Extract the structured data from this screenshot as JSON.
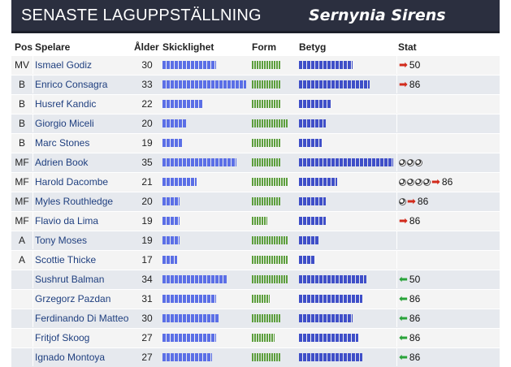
{
  "header": {
    "title": "SENASTE LAGUPPSTÄLLNING",
    "team": "Sernynia Sirens"
  },
  "columns": {
    "pos": "Pos",
    "player": "Spelare",
    "age": "Ålder",
    "skill": "Skicklighet",
    "form": "Form",
    "rating": "Betyg",
    "stat": "Stat"
  },
  "colors": {
    "header_bg": "#2b2f3f",
    "skill_bar": "#5b6fe6",
    "rating_bar": "#3f4fc8",
    "form_bar": "#5c9e3c",
    "arrow_up": "#d22b1c",
    "arrow_down": "#29a33a"
  },
  "players": [
    {
      "pos": "MV",
      "name": "Ismael Godiz",
      "age": "30",
      "skill": 0.62,
      "form": 0.78,
      "rating": 0.56,
      "balls": 0,
      "arrow": "up-arrow-icon",
      "stat": "50"
    },
    {
      "pos": "B",
      "name": "Enrico Consagra",
      "age": "33",
      "skill": 0.97,
      "form": 0.78,
      "rating": 0.74,
      "balls": 0,
      "arrow": "up-arrow-icon",
      "stat": "86"
    },
    {
      "pos": "B",
      "name": "Husref Kandic",
      "age": "22",
      "skill": 0.47,
      "form": 0.78,
      "rating": 0.34,
      "balls": 0,
      "arrow": "",
      "stat": ""
    },
    {
      "pos": "B",
      "name": "Giorgio Miceli",
      "age": "20",
      "skill": 0.28,
      "form": 0.95,
      "rating": 0.28,
      "balls": 0,
      "arrow": "",
      "stat": ""
    },
    {
      "pos": "B",
      "name": "Marc Stones",
      "age": "19",
      "skill": 0.24,
      "form": 0.78,
      "rating": 0.24,
      "balls": 0,
      "arrow": "",
      "stat": ""
    },
    {
      "pos": "MF",
      "name": "Adrien Book",
      "age": "35",
      "skill": 0.86,
      "form": 0.78,
      "rating": 0.98,
      "balls": 3,
      "arrow": "",
      "stat": ""
    },
    {
      "pos": "MF",
      "name": "Harold Dacombe",
      "age": "21",
      "skill": 0.4,
      "form": 0.95,
      "rating": 0.4,
      "balls": 4,
      "arrow": "up-arrow-icon",
      "stat": "86"
    },
    {
      "pos": "MF",
      "name": "Myles Routhledge",
      "age": "20",
      "skill": 0.2,
      "form": 0.78,
      "rating": 0.28,
      "balls": 1,
      "arrow": "up-arrow-icon",
      "stat": "86"
    },
    {
      "pos": "MF",
      "name": "Flavio da Lima",
      "age": "19",
      "skill": 0.2,
      "form": 0.42,
      "rating": 0.28,
      "balls": 0,
      "arrow": "up-arrow-icon",
      "stat": "86"
    },
    {
      "pos": "A",
      "name": "Tony Moses",
      "age": "19",
      "skill": 0.2,
      "form": 0.95,
      "rating": 0.2,
      "balls": 0,
      "arrow": "",
      "stat": ""
    },
    {
      "pos": "A",
      "name": "Scottie Thicke",
      "age": "17",
      "skill": 0.17,
      "form": 0.95,
      "rating": 0.17,
      "balls": 0,
      "arrow": "",
      "stat": ""
    },
    {
      "pos": "",
      "name": "Sushrut Balman",
      "age": "34",
      "skill": 0.75,
      "form": 0.95,
      "rating": 0.7,
      "balls": 0,
      "arrow": "down-arrow-icon",
      "stat": "50"
    },
    {
      "pos": "",
      "name": "Grzegorz Pazdan",
      "age": "31",
      "skill": 0.62,
      "form": 0.48,
      "rating": 0.66,
      "balls": 0,
      "arrow": "down-arrow-icon",
      "stat": "86"
    },
    {
      "pos": "",
      "name": "Ferdinando Di Matteo",
      "age": "30",
      "skill": 0.66,
      "form": 0.78,
      "rating": 0.56,
      "balls": 0,
      "arrow": "down-arrow-icon",
      "stat": "86"
    },
    {
      "pos": "",
      "name": "Fritjof Skoog",
      "age": "27",
      "skill": 0.62,
      "form": 0.6,
      "rating": 0.62,
      "balls": 0,
      "arrow": "down-arrow-icon",
      "stat": "86"
    },
    {
      "pos": "",
      "name": "Ignado Montoya",
      "age": "27",
      "skill": 0.58,
      "form": 0.78,
      "rating": 0.66,
      "balls": 0,
      "arrow": "down-arrow-icon",
      "stat": "86"
    }
  ]
}
